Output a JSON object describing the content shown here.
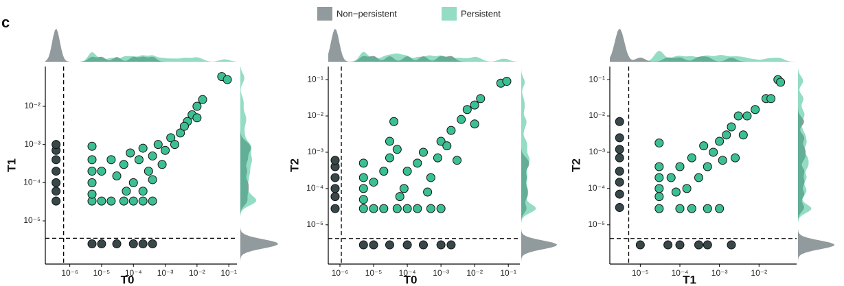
{
  "panel_label": "c",
  "chart_data": [
    {
      "type": "scatter",
      "log_x": true,
      "log_y": true,
      "x_label": "T0",
      "y_label": "T1",
      "xlim": [
        1.7e-07,
        0.18
      ],
      "ylim": [
        7.4e-07,
        0.11
      ],
      "xticks": [
        {
          "value": 1e-06,
          "label": "10⁻⁶"
        },
        {
          "value": 1e-05,
          "label": "10⁻⁵"
        },
        {
          "value": 0.0001,
          "label": "10⁻⁴"
        },
        {
          "value": 0.001,
          "label": "10⁻³"
        },
        {
          "value": 0.01,
          "label": "10⁻²"
        },
        {
          "value": 0.1,
          "label": "10⁻¹"
        }
      ],
      "yticks": [
        {
          "value": 1e-05,
          "label": "10⁻⁵"
        },
        {
          "value": 0.0001,
          "label": "10⁻⁴"
        },
        {
          "value": 0.001,
          "label": "10⁻³"
        },
        {
          "value": 0.01,
          "label": "10⁻²"
        }
      ],
      "x_threshold": 6.4e-07,
      "y_threshold": 3.5e-06,
      "series": [
        {
          "name": "Non−persistent",
          "color": "#37474a",
          "x": [
            3.7e-07,
            3.7e-07,
            3.7e-07,
            3.7e-07,
            3.7e-07,
            3.7e-07,
            3.7e-07,
            5e-06,
            1e-05,
            3e-05,
            0.0001,
            0.0002,
            0.0004
          ],
          "values": [
            3.3e-05,
            6e-05,
            0.0001,
            0.0002,
            0.0004,
            0.0007,
            0.001,
            2.5e-06,
            2.5e-06,
            2.5e-06,
            2.5e-06,
            2.5e-06,
            2.5e-06
          ]
        },
        {
          "name": "Persistent",
          "color": "#3cbf94",
          "x": [
            5e-06,
            1e-05,
            2e-05,
            5e-05,
            0.0001,
            0.0002,
            0.0004,
            5e-06,
            5e-06,
            5e-06,
            5e-06,
            5e-06,
            1e-05,
            2e-05,
            3e-05,
            5e-05,
            8e-05,
            0.0001,
            0.00015,
            0.0002,
            0.0003,
            0.0004,
            0.0006,
            0.0008,
            0.001,
            0.0015,
            0.002,
            0.003,
            0.005,
            0.007,
            0.01,
            0.015,
            0.01,
            0.004,
            6e-05,
            0.0002,
            0.0004,
            0.06,
            0.09
          ],
          "values": [
            3.3e-05,
            3.3e-05,
            3.3e-05,
            3.3e-05,
            3.3e-05,
            3.3e-05,
            3.3e-05,
            5e-05,
            0.0001,
            0.0002,
            0.0004,
            0.0009,
            0.0002,
            0.0004,
            0.00015,
            0.0003,
            0.0006,
            0.0001,
            0.0004,
            0.0008,
            0.0002,
            0.0005,
            0.001,
            0.0003,
            0.0007,
            0.0015,
            0.001,
            0.002,
            0.004,
            0.006,
            0.01,
            0.015,
            0.005,
            0.003,
            6e-05,
            6e-05,
            0.00012,
            0.06,
            0.05
          ]
        }
      ]
    },
    {
      "type": "scatter",
      "log_x": true,
      "log_y": true,
      "x_label": "T0",
      "y_label": "T2",
      "xlim": [
        4.5e-07,
        0.22
      ],
      "ylim": [
        8.3e-07,
        0.23
      ],
      "xticks": [
        {
          "value": 1e-06,
          "label": "10⁻⁶"
        },
        {
          "value": 1e-05,
          "label": "10⁻⁵"
        },
        {
          "value": 0.0001,
          "label": "10⁻⁴"
        },
        {
          "value": 0.001,
          "label": "10⁻³"
        },
        {
          "value": 0.01,
          "label": "10⁻²"
        },
        {
          "value": 0.1,
          "label": "10⁻¹"
        }
      ],
      "yticks": [
        {
          "value": 1e-05,
          "label": "10⁻⁵"
        },
        {
          "value": 0.0001,
          "label": "10⁻⁴"
        },
        {
          "value": 0.001,
          "label": "10⁻³"
        },
        {
          "value": 0.01,
          "label": "10⁻²"
        },
        {
          "value": 0.1,
          "label": "10⁻¹"
        }
      ],
      "x_threshold": 1.1e-06,
      "y_threshold": 4.2e-06,
      "series": [
        {
          "name": "Non−persistent",
          "color": "#37474a",
          "x": [
            7.2e-07,
            7.2e-07,
            7.2e-07,
            7.2e-07,
            7.2e-07,
            7.2e-07,
            5e-06,
            1e-05,
            3e-05,
            0.0001,
            0.0003,
            0.001,
            0.002
          ],
          "values": [
            2.8e-05,
            6e-05,
            0.0001,
            0.0002,
            0.0004,
            0.0006,
            2.8e-06,
            2.8e-06,
            2.8e-06,
            2.8e-06,
            2.8e-06,
            2.8e-06,
            2.8e-06
          ]
        },
        {
          "name": "Persistent",
          "color": "#3cbf94",
          "x": [
            5e-06,
            1e-05,
            2e-05,
            5e-05,
            0.0001,
            0.0002,
            0.0005,
            0.001,
            5e-06,
            5e-06,
            5e-06,
            5e-06,
            1e-05,
            2e-05,
            3e-05,
            3e-05,
            4e-05,
            5e-05,
            8e-05,
            0.0001,
            0.0002,
            0.0003,
            0.0005,
            0.0008,
            0.001,
            0.0015,
            0.002,
            0.003,
            0.004,
            0.006,
            0.01,
            0.015,
            0.01,
            0.06,
            0.09,
            6e-05,
            0.0004
          ],
          "values": [
            2.8e-05,
            2.8e-05,
            2.8e-05,
            2.8e-05,
            2.8e-05,
            2.8e-05,
            2.8e-05,
            2.8e-05,
            5e-05,
            0.0001,
            0.0002,
            0.0005,
            0.00015,
            0.0003,
            0.0007,
            0.002,
            0.007,
            0.0012,
            0.0001,
            0.0003,
            0.0005,
            0.001,
            0.0002,
            0.0007,
            0.002,
            0.0015,
            0.004,
            0.0006,
            0.008,
            0.015,
            0.02,
            0.03,
            0.006,
            0.08,
            0.09,
            6e-05,
            8e-05
          ]
        }
      ]
    },
    {
      "type": "scatter",
      "log_x": true,
      "log_y": true,
      "x_label": "T1",
      "y_label": "T2",
      "xlim": [
        1.7e-06,
        0.089
      ],
      "ylim": [
        8.3e-07,
        0.23
      ],
      "xticks": [
        {
          "value": 1e-05,
          "label": "10⁻⁵"
        },
        {
          "value": 0.0001,
          "label": "10⁻⁴"
        },
        {
          "value": 0.001,
          "label": "10⁻³"
        },
        {
          "value": 0.01,
          "label": "10⁻²"
        }
      ],
      "yticks": [
        {
          "value": 1e-05,
          "label": "10⁻⁵"
        },
        {
          "value": 0.0001,
          "label": "10⁻⁴"
        },
        {
          "value": 0.001,
          "label": "10⁻³"
        },
        {
          "value": 0.01,
          "label": "10⁻²"
        },
        {
          "value": 0.1,
          "label": "10⁻¹"
        }
      ],
      "x_threshold": 5.1e-06,
      "y_threshold": 4.2e-06,
      "series": [
        {
          "name": "Non−persistent",
          "color": "#37474a",
          "x": [
            3e-06,
            3e-06,
            3e-06,
            3e-06,
            3e-06,
            3e-06,
            3e-06,
            3e-06,
            1e-05,
            5e-05,
            0.0001,
            0.0003,
            0.0005,
            0.002
          ],
          "values": [
            3e-05,
            7e-05,
            0.00015,
            0.0003,
            0.0007,
            0.0012,
            0.0025,
            0.007,
            2.8e-06,
            2.8e-06,
            2.8e-06,
            2.8e-06,
            2.8e-06,
            2.8e-06
          ]
        },
        {
          "name": "Persistent",
          "color": "#3cbf94",
          "x": [
            3e-05,
            0.0001,
            0.0002,
            0.0005,
            0.001,
            3e-05,
            3e-05,
            3e-05,
            3e-05,
            3e-05,
            6e-05,
            0.0001,
            0.00015,
            0.0002,
            0.0003,
            0.0004,
            0.0005,
            0.0007,
            0.001,
            0.0012,
            0.0015,
            0.002,
            0.003,
            0.004,
            0.005,
            0.008,
            0.015,
            0.02,
            0.03,
            0.035,
            0.0025,
            8e-05
          ],
          "values": [
            2.8e-05,
            2.8e-05,
            2.8e-05,
            2.8e-05,
            2.8e-05,
            6e-05,
            0.0001,
            0.0002,
            0.0004,
            0.0018,
            0.0002,
            0.0004,
            0.0001,
            0.0007,
            0.0002,
            0.0015,
            0.0004,
            0.001,
            0.002,
            0.0006,
            0.003,
            0.005,
            0.01,
            0.003,
            0.01,
            0.015,
            0.03,
            0.03,
            0.1,
            0.085,
            0.0007,
            8e-05
          ]
        }
      ]
    }
  ]
}
